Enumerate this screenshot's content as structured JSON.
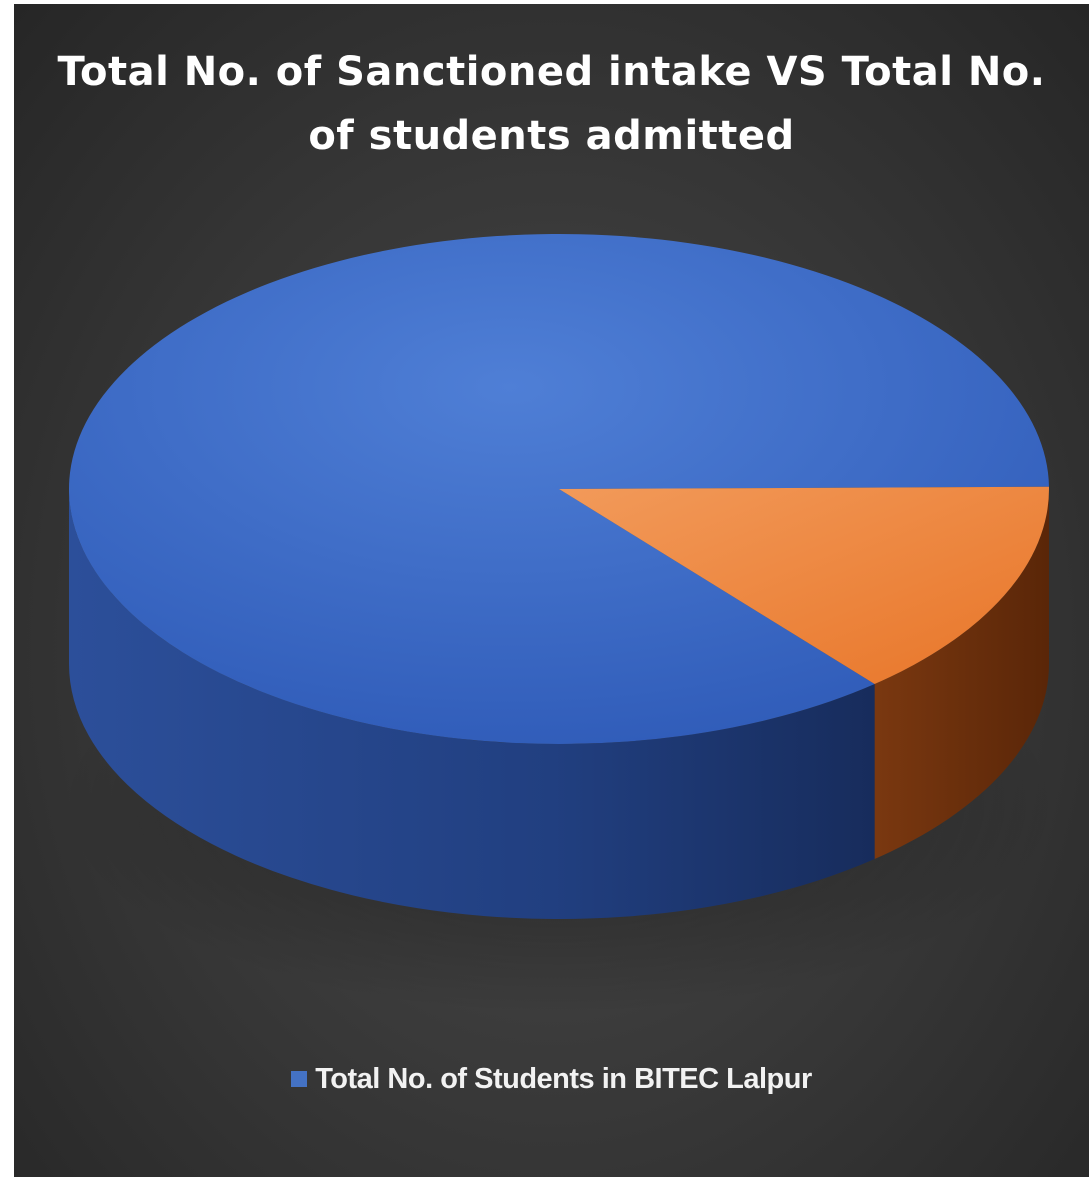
{
  "chart_data": {
    "type": "pie",
    "title_lines": [
      "Total No. of Sanctioned intake VS Total No.",
      "of students admitted"
    ],
    "categories": [
      "Total No. of Students in BITEC Lalpur",
      ""
    ],
    "values": [
      86,
      14
    ],
    "colors": [
      "#4472c4",
      "#ed7d31"
    ],
    "style": "3d",
    "legend": {
      "position": "bottom",
      "entries": [
        "Total No. of Students in BITEC Lalpur"
      ]
    }
  }
}
